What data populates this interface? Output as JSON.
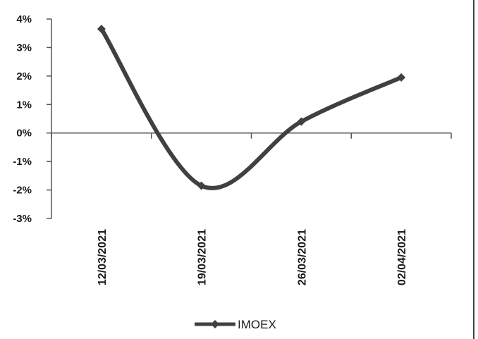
{
  "chart_data": {
    "type": "line",
    "categories": [
      "12/03/2021",
      "19/03/2021",
      "26/03/2021",
      "02/04/2021"
    ],
    "series": [
      {
        "name": "IMOEX",
        "values": [
          3.65,
          -1.85,
          0.4,
          1.95
        ]
      }
    ],
    "ylim": [
      -3,
      4
    ],
    "yticks": [
      "4%",
      "3%",
      "2%",
      "1%",
      "0%",
      "-1%",
      "-2%",
      "-3%"
    ],
    "ytick_values": [
      4,
      3,
      2,
      1,
      0,
      -1,
      -2,
      -3
    ],
    "grid": false,
    "smooth": true,
    "marker": "diamond",
    "legend_position": "bottom",
    "colors": {
      "series": "#404040",
      "axis": "#555555",
      "border": "#000000",
      "text": "#1a1a1a"
    }
  }
}
